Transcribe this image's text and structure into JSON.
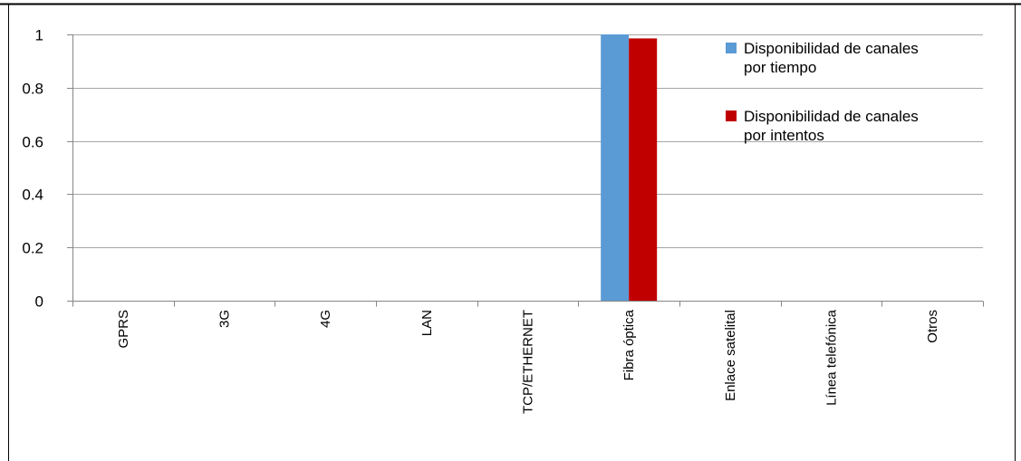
{
  "chart_data": {
    "type": "bar",
    "categories": [
      "GPRS",
      "3G",
      "4G",
      "LAN",
      "TCP/ETHERNET",
      "Fibra óptica",
      "Enlace satelital",
      "Línea telefónica",
      "Otros"
    ],
    "series": [
      {
        "name": "Disponibilidad de canales por tiempo",
        "label_lines": [
          "Disponibilidad de canales",
          "por tiempo"
        ],
        "color": "#5b9bd5",
        "values": [
          0,
          0,
          0,
          0,
          0,
          1.0,
          0,
          0,
          0
        ]
      },
      {
        "name": "Disponibilidad de canales por intentos",
        "label_lines": [
          "Disponibilidad de canales",
          "por intentos"
        ],
        "color": "#c00000",
        "values": [
          0,
          0,
          0,
          0,
          0,
          0.985,
          0,
          0,
          0
        ]
      }
    ],
    "ylim": [
      0,
      1
    ],
    "yticks": [
      0,
      0.2,
      0.4,
      0.6,
      0.8,
      1
    ],
    "ytick_labels": [
      "0",
      "0.2",
      "0.4",
      "0.6",
      "0.8",
      "1"
    ],
    "grid": true,
    "legend_position": "top-right",
    "colors": {
      "grid": "#a6a6a6",
      "axis": "#868686",
      "text": "#000000"
    }
  }
}
